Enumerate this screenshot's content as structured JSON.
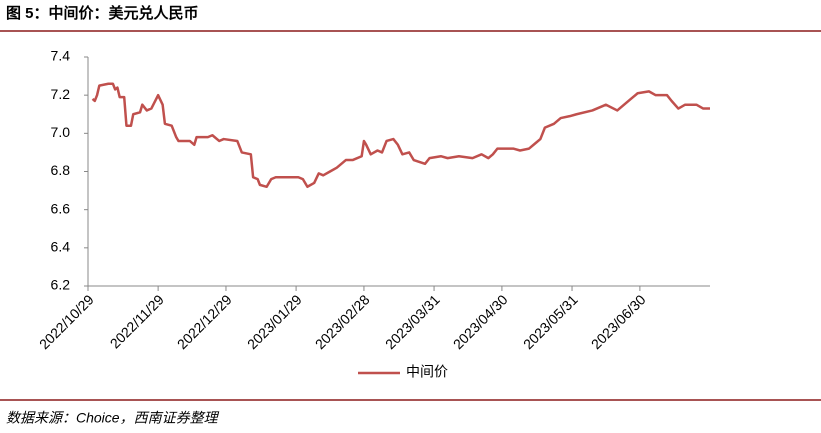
{
  "chart_data": {
    "type": "line",
    "title": "图 5：中间价：美元兑人民币",
    "source": "数据来源：Choice，西南证券整理",
    "x": [
      "2022/10/31",
      "2022/11/01",
      "2022/11/02",
      "2022/11/03",
      "2022/11/07",
      "2022/11/09",
      "2022/11/10",
      "2022/11/11",
      "2022/11/12",
      "2022/11/14",
      "2022/11/15",
      "2022/11/17",
      "2022/11/18",
      "2022/11/21",
      "2022/11/22",
      "2022/11/24",
      "2022/11/26",
      "2022/11/29",
      "2022/12/01",
      "2022/12/02",
      "2022/12/05",
      "2022/12/07",
      "2022/12/08",
      "2022/12/13",
      "2022/12/15",
      "2022/12/16",
      "2022/12/21",
      "2022/12/23",
      "2022/12/26",
      "2022/12/28",
      "2023/01/03",
      "2023/01/05",
      "2023/01/09",
      "2023/01/10",
      "2023/01/12",
      "2023/01/13",
      "2023/01/16",
      "2023/01/18",
      "2023/01/20",
      "2023/01/30",
      "2023/02/01",
      "2023/02/03",
      "2023/02/06",
      "2023/02/08",
      "2023/02/10",
      "2023/02/13",
      "2023/02/16",
      "2023/02/20",
      "2023/02/23",
      "2023/02/27",
      "2023/02/28",
      "2023/03/01",
      "2023/03/03",
      "2023/03/06",
      "2023/03/08",
      "2023/03/10",
      "2023/03/13",
      "2023/03/15",
      "2023/03/17",
      "2023/03/20",
      "2023/03/22",
      "2023/03/27",
      "2023/03/29",
      "2023/04/03",
      "2023/04/06",
      "2023/04/11",
      "2023/04/17",
      "2023/04/21",
      "2023/04/24",
      "2023/04/26",
      "2023/04/28",
      "2023/05/05",
      "2023/05/08",
      "2023/05/12",
      "2023/05/15",
      "2023/05/17",
      "2023/05/19",
      "2023/05/23",
      "2023/05/26",
      "2023/05/30",
      "2023/06/02",
      "2023/06/09",
      "2023/06/15",
      "2023/06/20",
      "2023/06/26",
      "2023/06/29",
      "2023/07/04",
      "2023/07/07",
      "2023/07/12",
      "2023/07/14",
      "2023/07/17",
      "2023/07/20",
      "2023/07/25",
      "2023/07/28",
      "2023/07/31"
    ],
    "series": [
      {
        "name": "中间价",
        "color": "#c0504d",
        "values": [
          7.18,
          7.17,
          7.2,
          7.25,
          7.26,
          7.26,
          7.23,
          7.24,
          7.19,
          7.19,
          7.04,
          7.04,
          7.1,
          7.11,
          7.15,
          7.12,
          7.13,
          7.2,
          7.15,
          7.05,
          7.04,
          6.98,
          6.96,
          6.96,
          6.94,
          6.98,
          6.98,
          6.99,
          6.96,
          6.97,
          6.96,
          6.9,
          6.89,
          6.77,
          6.76,
          6.73,
          6.72,
          6.76,
          6.77,
          6.77,
          6.76,
          6.72,
          6.74,
          6.79,
          6.78,
          6.8,
          6.82,
          6.86,
          6.86,
          6.88,
          6.96,
          6.94,
          6.89,
          6.91,
          6.9,
          6.96,
          6.97,
          6.94,
          6.89,
          6.9,
          6.86,
          6.84,
          6.87,
          6.88,
          6.87,
          6.88,
          6.87,
          6.89,
          6.87,
          6.89,
          6.92,
          6.92,
          6.91,
          6.92,
          6.95,
          6.97,
          7.03,
          7.05,
          7.08,
          7.09,
          7.1,
          7.12,
          7.15,
          7.12,
          7.18,
          7.21,
          7.22,
          7.2,
          7.2,
          7.17,
          7.13,
          7.15,
          7.15,
          7.13,
          7.13
        ]
      }
    ],
    "xlim": [
      "2022/10/29",
      "2023/07/31"
    ],
    "xticks": [
      "2022/10/29",
      "2022/11/29",
      "2022/12/29",
      "2023/01/29",
      "2023/02/28",
      "2023/03/31",
      "2023/04/30",
      "2023/05/31",
      "2023/06/30"
    ],
    "ylim": [
      6.2,
      7.4
    ],
    "yticks": [
      {
        "value": 6.2,
        "label": "6.2"
      },
      {
        "value": 6.4,
        "label": "6.4"
      },
      {
        "value": 6.6,
        "label": "6.6"
      },
      {
        "value": 6.8,
        "label": "6.8"
      },
      {
        "value": 7.0,
        "label": "7.0"
      },
      {
        "value": 7.2,
        "label": "7.2"
      },
      {
        "value": 7.4,
        "label": "7.4"
      }
    ],
    "grid": false
  }
}
